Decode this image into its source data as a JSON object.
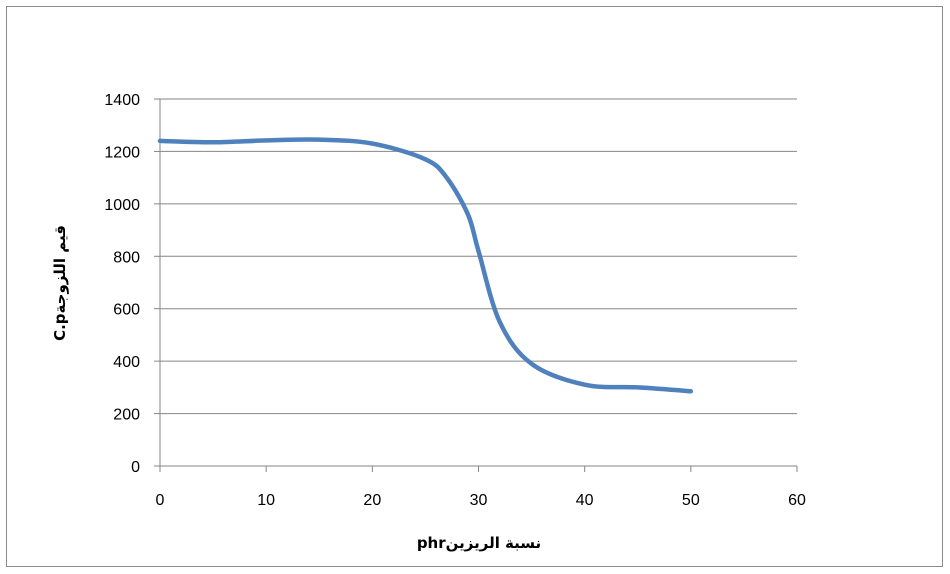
{
  "chart_data": {
    "type": "line",
    "title": "",
    "xlabel": "نسبة الريزينphr",
    "ylabel": "قيم اللزوجةC.p",
    "xlim": [
      0,
      60
    ],
    "ylim": [
      0,
      1400
    ],
    "x_ticks": [
      0,
      10,
      20,
      30,
      40,
      50,
      60
    ],
    "y_ticks": [
      0,
      200,
      400,
      600,
      800,
      1000,
      1200,
      1400
    ],
    "grid": "horizontal",
    "legend": "none",
    "series": [
      {
        "color": "#4f81bd",
        "x": [
          0,
          5,
          10,
          15,
          20,
          25,
          27,
          29,
          30,
          32,
          35,
          40,
          45,
          50
        ],
        "values": [
          1240,
          1235,
          1242,
          1245,
          1230,
          1170,
          1100,
          960,
          820,
          550,
          390,
          310,
          300,
          285
        ]
      }
    ]
  }
}
